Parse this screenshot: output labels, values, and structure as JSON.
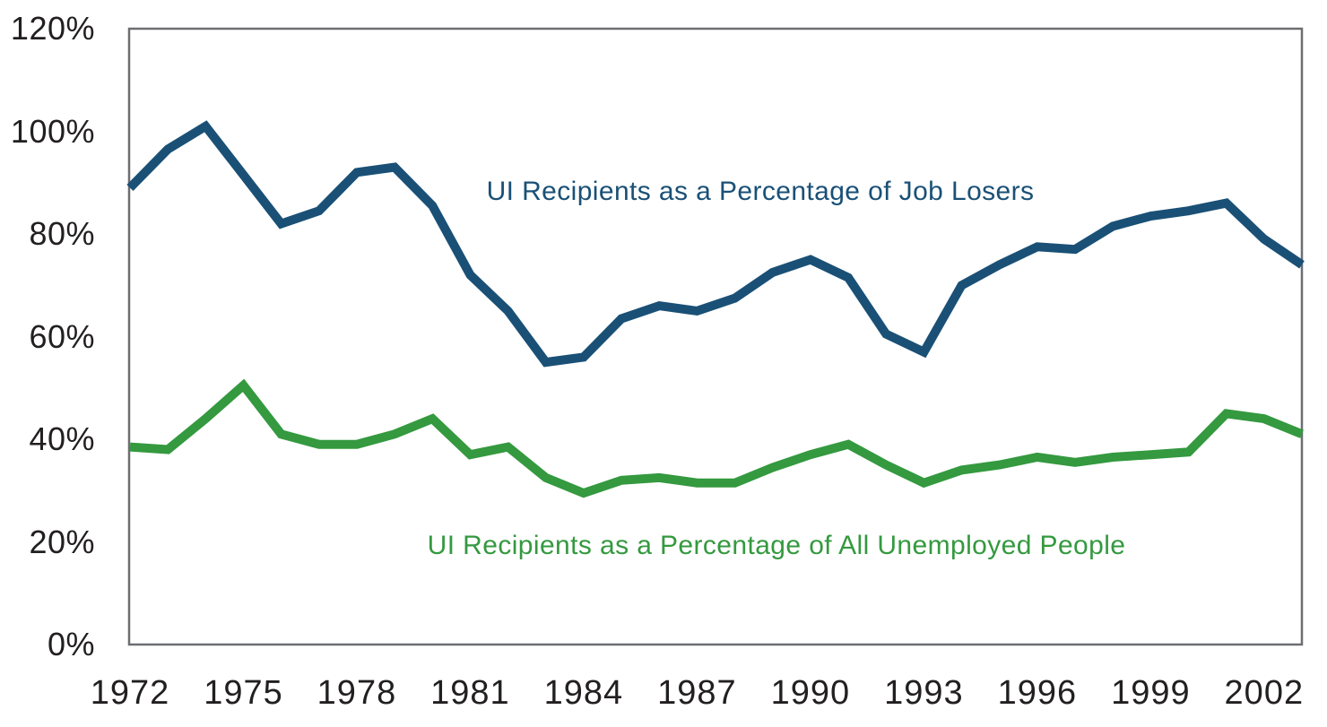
{
  "chart_data": {
    "type": "line",
    "title": "",
    "xlabel": "",
    "ylabel": "",
    "x_years": [
      1972,
      1973,
      1974,
      1975,
      1976,
      1977,
      1978,
      1979,
      1980,
      1981,
      1982,
      1983,
      1984,
      1985,
      1986,
      1987,
      1988,
      1989,
      1990,
      1991,
      1992,
      1993,
      1994,
      1995,
      1996,
      1997,
      1998,
      1999,
      2000,
      2001,
      2002,
      2003
    ],
    "series": [
      {
        "name": "UI Recipients as a Percentage of Job Losers",
        "color": "#1a5076",
        "values": [
          89,
          96.5,
          101,
          91.5,
          82,
          84.5,
          92,
          93,
          85.5,
          72,
          65,
          55,
          56,
          63.5,
          66,
          65,
          67.5,
          72.5,
          75,
          71.5,
          60.5,
          57,
          70,
          74,
          77.5,
          77,
          81.5,
          83.5,
          84.5,
          86,
          79,
          74
        ]
      },
      {
        "name": "UI Recipients as a Percentage of All Unemployed People",
        "color": "#34993f",
        "values": [
          38.5,
          38,
          44,
          50.5,
          41,
          39,
          39,
          41,
          44,
          37,
          38.5,
          32.5,
          29.5,
          32,
          32.5,
          31.5,
          31.5,
          34.5,
          37,
          39,
          35,
          31.5,
          34,
          35,
          36.5,
          35.5,
          36.5,
          37,
          37.5,
          45,
          44,
          41
        ]
      }
    ],
    "ylim": [
      0,
      120
    ],
    "y_tick_values": [
      0,
      20,
      40,
      60,
      80,
      100,
      120
    ],
    "y_tick_labels": [
      "0%",
      "20%",
      "40%",
      "60%",
      "80%",
      "100%",
      "120%"
    ],
    "x_tick_years": [
      1972,
      1975,
      1978,
      1981,
      1984,
      1987,
      1990,
      1993,
      1996,
      1999,
      2002
    ],
    "grid": false,
    "legend_position": "inline-labels",
    "axis_color": "#6d6e71",
    "tick_text_color": "#221f20"
  }
}
